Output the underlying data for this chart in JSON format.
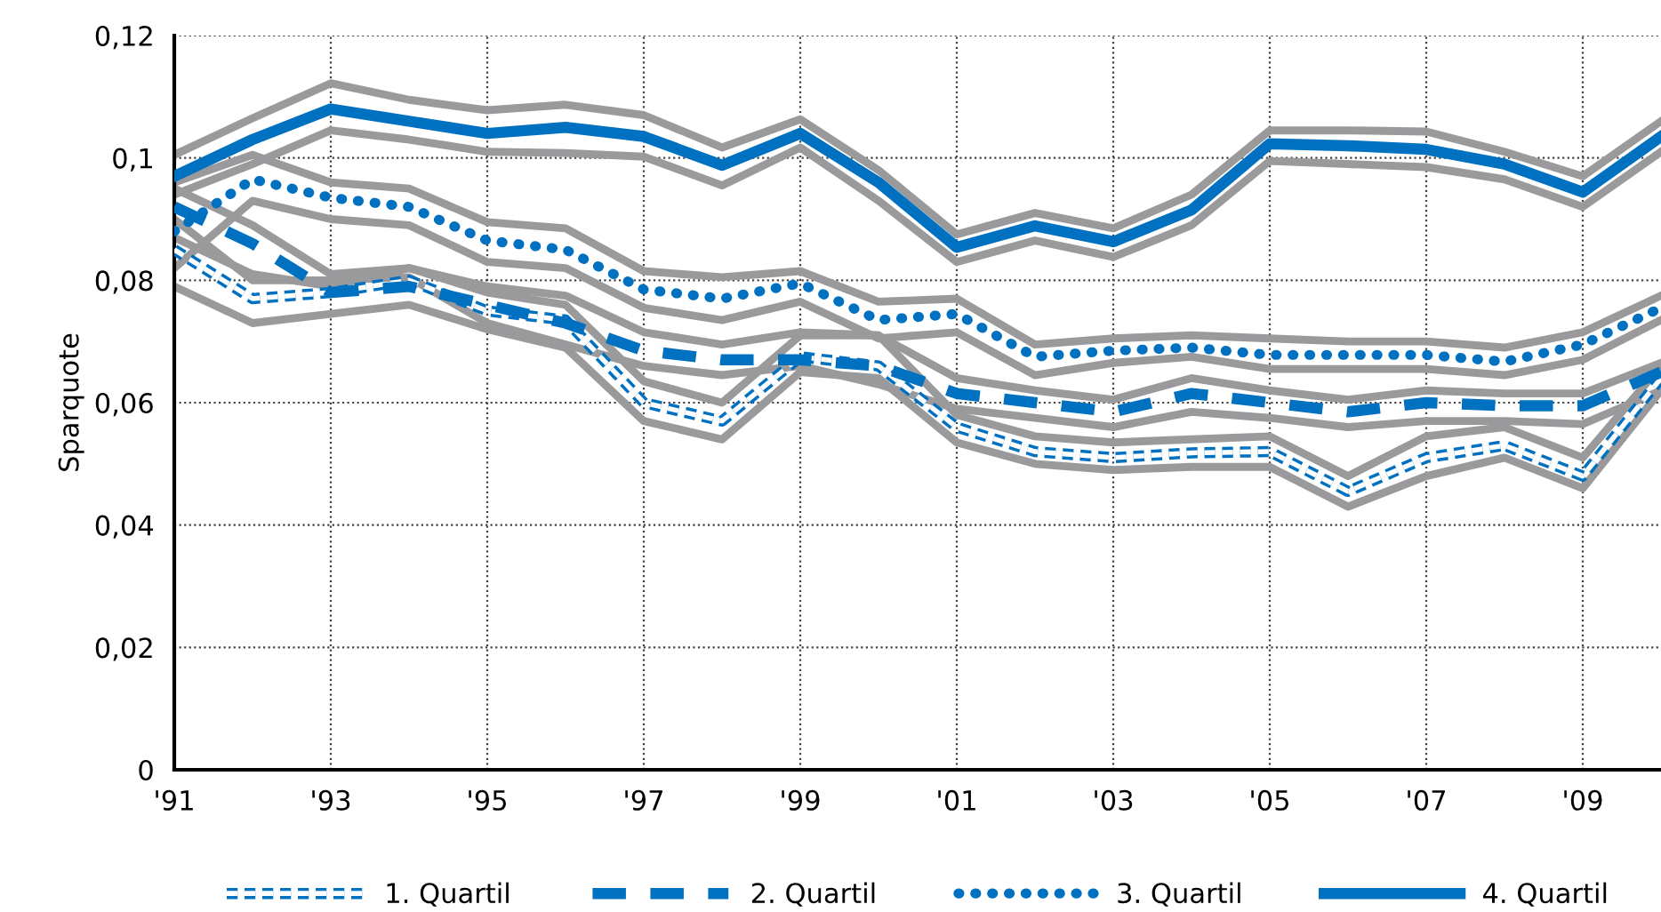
{
  "chart_data": {
    "type": "line",
    "ylabel": "Sparquote",
    "x": [
      1991,
      1992,
      1993,
      1994,
      1995,
      1996,
      1997,
      1998,
      1999,
      2000,
      2001,
      2002,
      2003,
      2004,
      2005,
      2006,
      2007,
      2008,
      2009,
      2010
    ],
    "series": [
      {
        "color": "#9a9a9c",
        "line_style": "solid",
        "values": [
          0.087,
          0.081,
          0.079,
          0.082,
          0.078,
          0.076,
          0.0635,
          0.06,
          0.071,
          0.071,
          0.058,
          0.0545,
          0.0535,
          0.054,
          0.0545,
          0.048,
          0.0545,
          0.056,
          0.051,
          0.066
        ]
      },
      {
        "color": "#9a9a9c",
        "line_style": "solid",
        "values": [
          0.079,
          0.073,
          0.0745,
          0.076,
          0.072,
          0.069,
          0.057,
          0.054,
          0.065,
          0.064,
          0.0535,
          0.05,
          0.049,
          0.0495,
          0.0495,
          0.043,
          0.048,
          0.051,
          0.046,
          0.062
        ]
      },
      {
        "color": "#9a9a9c",
        "line_style": "solid",
        "values": [
          0.095,
          0.089,
          0.081,
          0.082,
          0.079,
          0.0775,
          0.0715,
          0.0695,
          0.0715,
          0.071,
          0.064,
          0.062,
          0.0605,
          0.064,
          0.062,
          0.0605,
          0.062,
          0.0615,
          0.0615,
          0.0665
        ]
      },
      {
        "color": "#9a9a9c",
        "line_style": "solid",
        "values": [
          0.09,
          0.08,
          0.08,
          0.0805,
          0.073,
          0.0695,
          0.066,
          0.0645,
          0.066,
          0.063,
          0.059,
          0.0575,
          0.056,
          0.0585,
          0.0575,
          0.056,
          0.057,
          0.057,
          0.0565,
          0.062
        ]
      },
      {
        "color": "#9a9a9c",
        "line_style": "solid",
        "values": [
          0.096,
          0.1005,
          0.096,
          0.095,
          0.0895,
          0.0885,
          0.0815,
          0.0805,
          0.0815,
          0.0765,
          0.077,
          0.0695,
          0.0705,
          0.071,
          0.0705,
          0.07,
          0.07,
          0.069,
          0.0715,
          0.0775
        ]
      },
      {
        "color": "#9a9a9c",
        "line_style": "solid",
        "values": [
          0.082,
          0.093,
          0.09,
          0.089,
          0.083,
          0.082,
          0.0755,
          0.0735,
          0.0765,
          0.0705,
          0.0715,
          0.0645,
          0.0665,
          0.0675,
          0.0655,
          0.0655,
          0.0655,
          0.0645,
          0.067,
          0.0735
        ]
      },
      {
        "color": "#9a9a9c",
        "line_style": "solid",
        "values": [
          0.1005,
          0.1065,
          0.1122,
          0.1095,
          0.1078,
          0.1087,
          0.107,
          0.1017,
          0.1063,
          0.098,
          0.0875,
          0.091,
          0.0885,
          0.094,
          0.1045,
          0.1045,
          0.1043,
          0.101,
          0.097,
          0.106
        ]
      },
      {
        "color": "#9a9a9c",
        "line_style": "solid",
        "values": [
          0.094,
          0.099,
          0.1045,
          0.103,
          0.101,
          0.1008,
          0.1002,
          0.0955,
          0.1017,
          0.093,
          0.083,
          0.0865,
          0.0838,
          0.089,
          0.0995,
          0.099,
          0.0985,
          0.0965,
          0.092,
          0.101
        ]
      },
      {
        "name": "1. Quartil",
        "color": "#0070c0",
        "line_style": "dashed",
        "values": [
          0.085,
          0.077,
          0.078,
          0.08,
          0.075,
          0.0735,
          0.06,
          0.057,
          0.0675,
          0.066,
          0.056,
          0.052,
          0.051,
          0.0518,
          0.052,
          0.0455,
          0.051,
          0.053,
          0.048,
          0.064
        ]
      },
      {
        "name": "2. Quartil",
        "color": "#0070c0",
        "line_style": "dashed",
        "values": [
          0.092,
          0.086,
          0.078,
          0.079,
          0.076,
          0.073,
          0.0685,
          0.067,
          0.067,
          0.066,
          0.0615,
          0.06,
          0.0585,
          0.0615,
          0.06,
          0.0585,
          0.06,
          0.0595,
          0.0595,
          0.065
        ]
      },
      {
        "name": "3. Quartil",
        "color": "#0070c0",
        "line_style": "dotted",
        "values": [
          0.088,
          0.0965,
          0.0935,
          0.092,
          0.0865,
          0.085,
          0.0785,
          0.077,
          0.0795,
          0.0735,
          0.0745,
          0.0675,
          0.0685,
          0.069,
          0.0678,
          0.0678,
          0.0678,
          0.0667,
          0.0695,
          0.0755
        ]
      },
      {
        "name": "4. Quartil",
        "color": "#0070c0",
        "line_style": "solid",
        "values": [
          0.097,
          0.103,
          0.108,
          0.106,
          0.104,
          0.105,
          0.1035,
          0.0988,
          0.104,
          0.096,
          0.0854,
          0.0889,
          0.0863,
          0.0915,
          0.1023,
          0.102,
          0.1014,
          0.099,
          0.0944,
          0.1035
        ]
      }
    ],
    "xlim": [
      1991,
      2010
    ],
    "xticks": [
      {
        "value": 1991,
        "label": "'91"
      },
      {
        "value": 1993,
        "label": "'93"
      },
      {
        "value": 1995,
        "label": "'95"
      },
      {
        "value": 1997,
        "label": "'97"
      },
      {
        "value": 1999,
        "label": "'99"
      },
      {
        "value": 2001,
        "label": "'01"
      },
      {
        "value": 2003,
        "label": "'03"
      },
      {
        "value": 2005,
        "label": "'05"
      },
      {
        "value": 2007,
        "label": "'07"
      },
      {
        "value": 2009,
        "label": "'09"
      }
    ],
    "ylim": [
      0,
      0.12
    ],
    "yticks": [
      0,
      {
        "value": 0.02,
        "label": "0,02"
      },
      {
        "value": 0.04,
        "label": "0,04"
      },
      {
        "value": 0.06,
        "label": "0,06"
      },
      {
        "value": 0.08,
        "label": "0,08"
      },
      {
        "value": 0.1,
        "label": "0,1"
      },
      {
        "value": 0.12,
        "label": "0,12"
      }
    ],
    "grid": true,
    "legend": "bottom",
    "marker": "none"
  }
}
